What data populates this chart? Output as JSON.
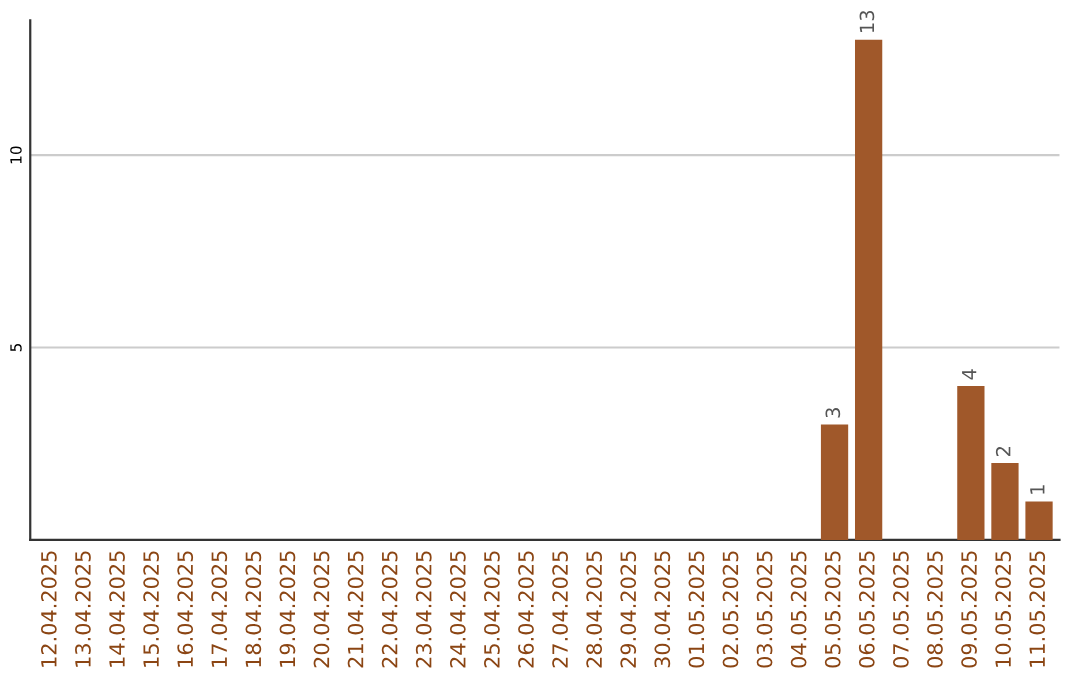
{
  "chart_data": {
    "type": "bar",
    "categories": [
      "12.04.2025",
      "13.04.2025",
      "14.04.2025",
      "15.04.2025",
      "16.04.2025",
      "17.04.2025",
      "18.04.2025",
      "19.04.2025",
      "20.04.2025",
      "21.04.2025",
      "22.04.2025",
      "23.04.2025",
      "24.04.2025",
      "25.04.2025",
      "26.04.2025",
      "27.04.2025",
      "28.04.2025",
      "29.04.2025",
      "30.04.2025",
      "01.05.2025",
      "02.05.2025",
      "03.05.2025",
      "04.05.2025",
      "05.05.2025",
      "06.05.2025",
      "07.05.2025",
      "08.05.2025",
      "09.05.2025",
      "10.05.2025",
      "11.05.2025"
    ],
    "values": [
      0,
      0,
      0,
      0,
      0,
      0,
      0,
      0,
      0,
      0,
      0,
      0,
      0,
      0,
      0,
      0,
      0,
      0,
      0,
      0,
      0,
      0,
      0,
      3,
      13,
      0,
      0,
      4,
      2,
      1
    ],
    "value_labels": [
      null,
      null,
      null,
      null,
      null,
      null,
      null,
      null,
      null,
      null,
      null,
      null,
      null,
      null,
      null,
      null,
      null,
      null,
      null,
      null,
      null,
      null,
      null,
      "3",
      "13",
      null,
      null,
      "4",
      "2",
      "1"
    ],
    "color": "#a0582a",
    "ylim": [
      0,
      13.5
    ],
    "yticks": [
      5,
      10
    ],
    "grid": "y",
    "legend": false
  }
}
